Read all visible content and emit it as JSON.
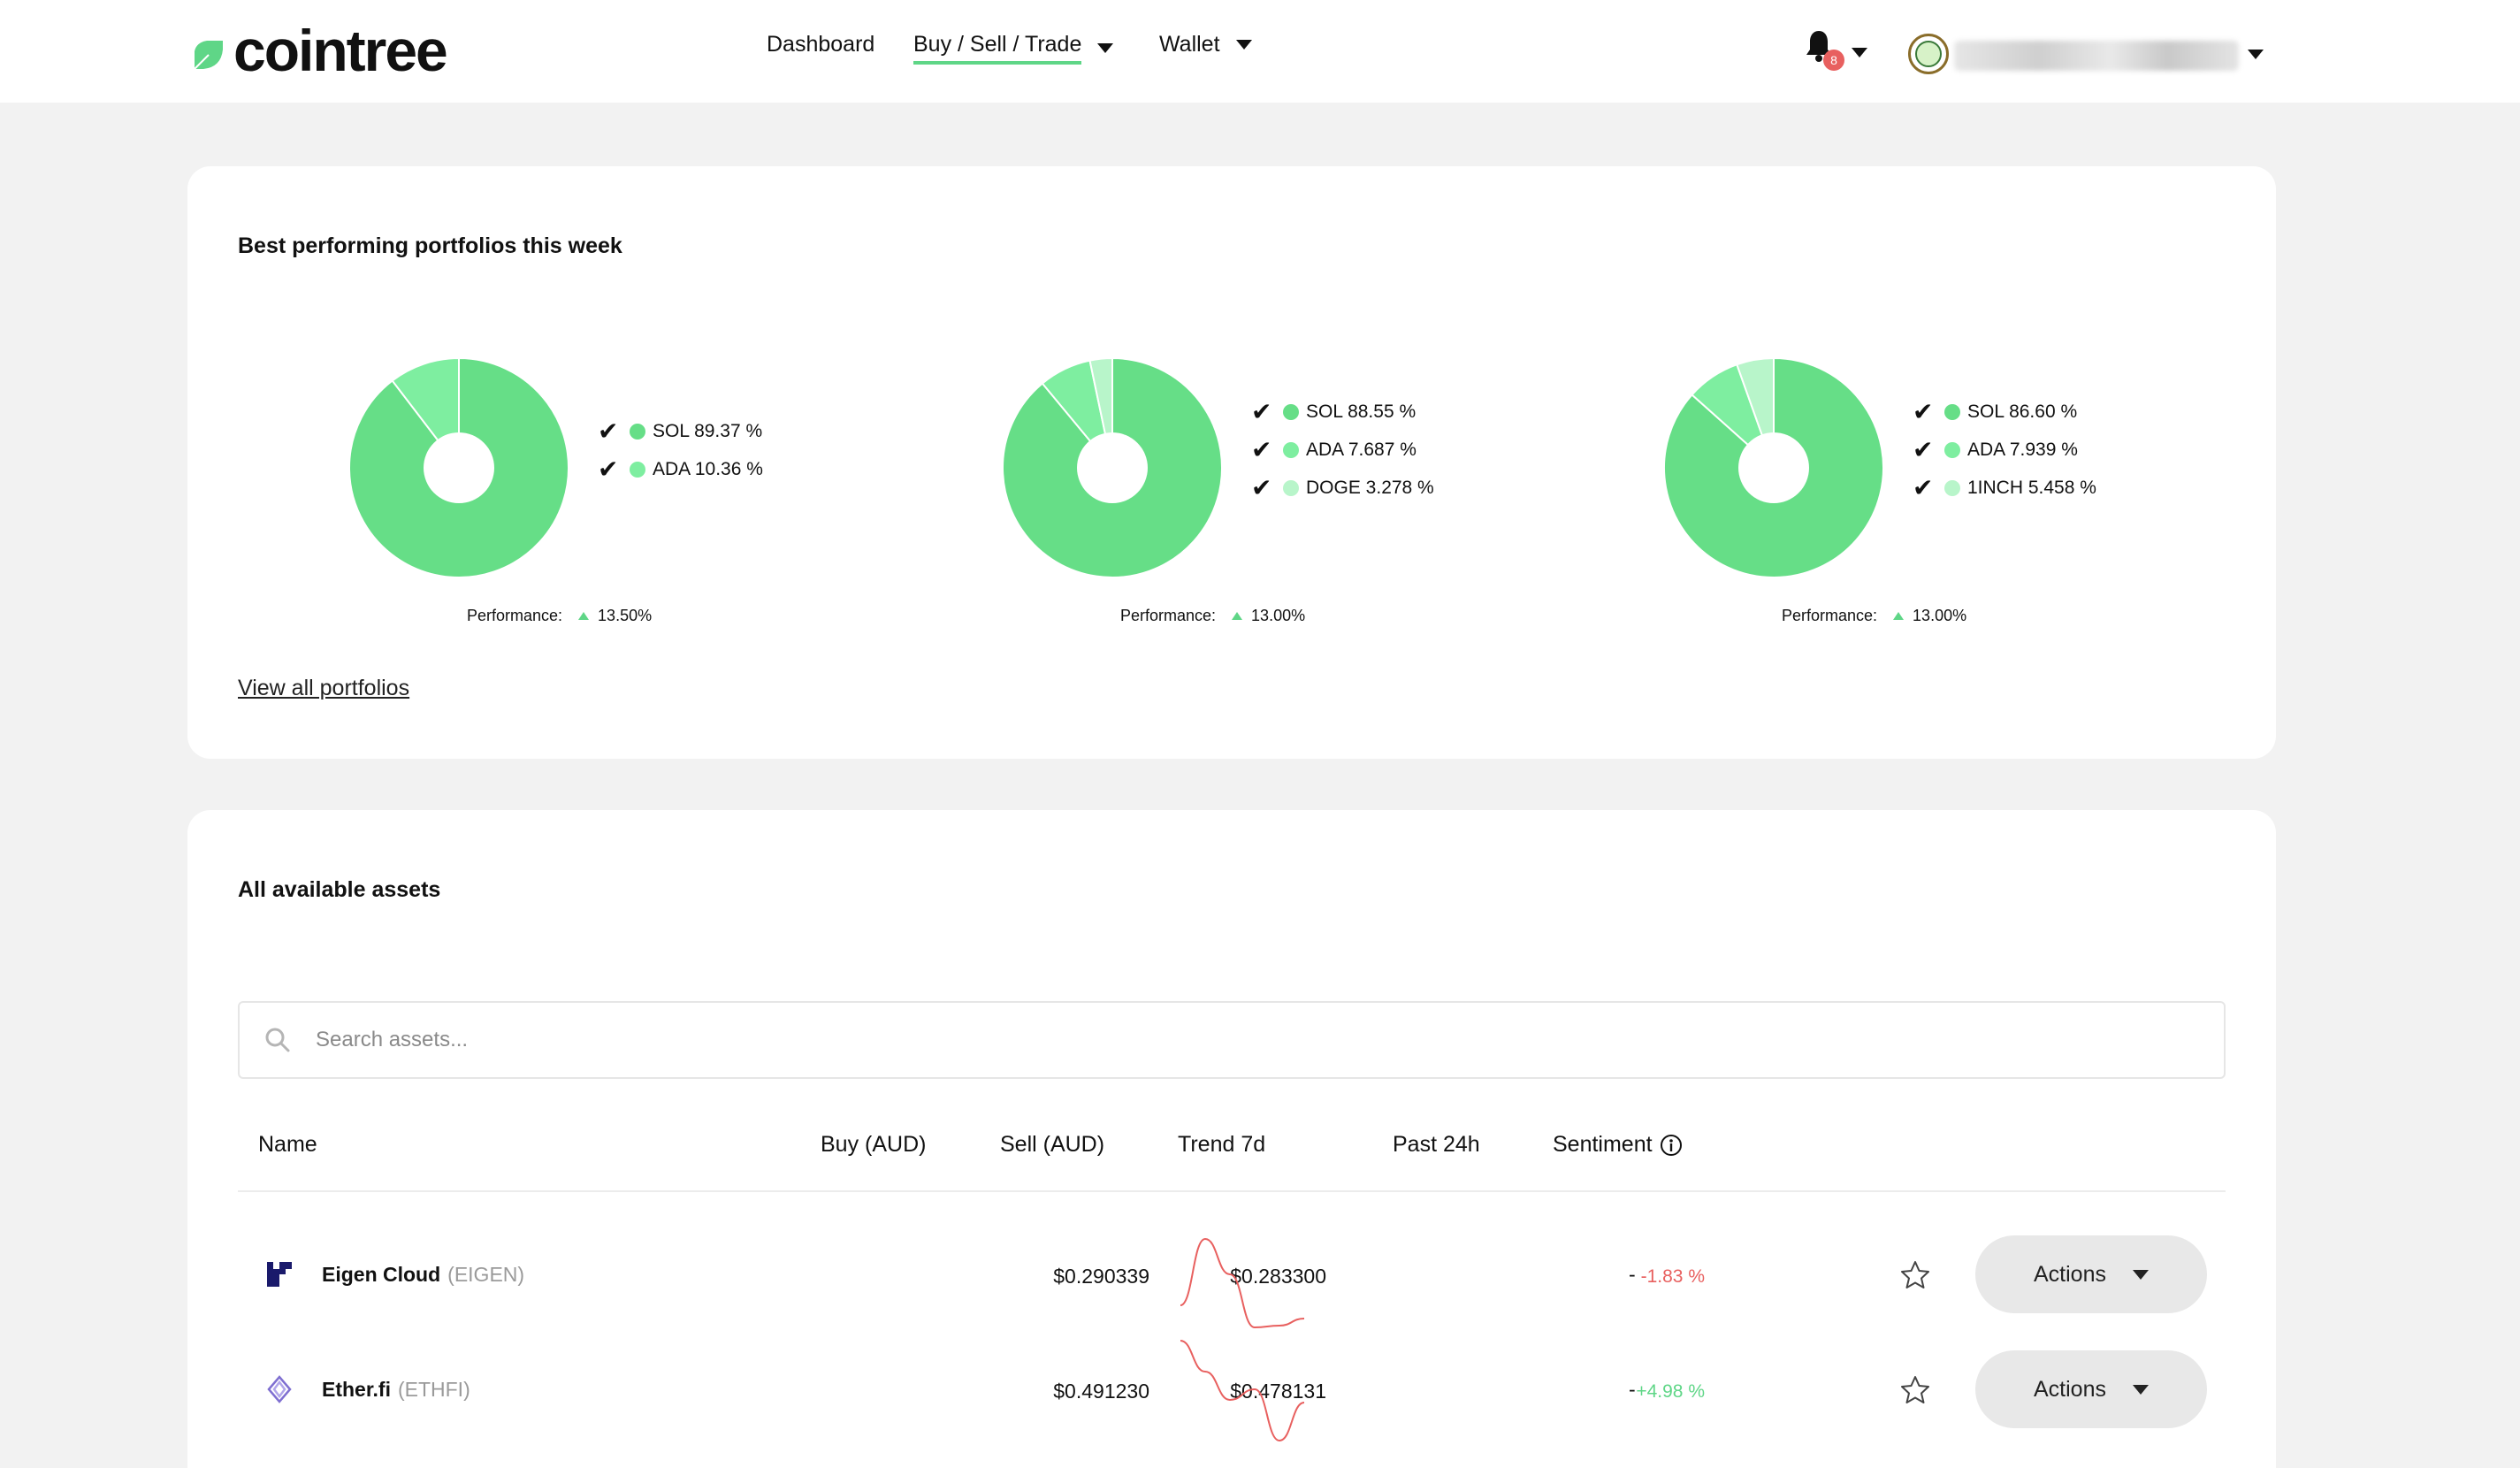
{
  "header": {
    "logo_text": "cointree",
    "nav": [
      {
        "label": "Dashboard",
        "active": false,
        "has_caret": false
      },
      {
        "label": "Buy / Sell / Trade",
        "active": true,
        "has_caret": true
      },
      {
        "label": "Wallet",
        "active": false,
        "has_caret": true
      }
    ],
    "notification_count": "8"
  },
  "colors": {
    "brand_green": "#5fd687",
    "slice_1": "#66de87",
    "slice_2": "#7eeea0",
    "slice_3": "#b8f5ca",
    "negative": "#e8605f",
    "positive": "#5fd687"
  },
  "portfolios_card": {
    "title": "Best performing portfolios this week",
    "performance_label": "Performance:",
    "view_all": "View all portfolios",
    "portfolios": [
      {
        "performance": "13.50%",
        "holdings": [
          {
            "label": "SOL 89.37 %",
            "share": 89.37
          },
          {
            "label": "ADA 10.36 %",
            "share": 10.36
          }
        ]
      },
      {
        "performance": "13.00%",
        "holdings": [
          {
            "label": "SOL 88.55 %",
            "share": 88.55
          },
          {
            "label": "ADA 7.687 %",
            "share": 7.687
          },
          {
            "label": "DOGE 3.278 %",
            "share": 3.278
          }
        ]
      },
      {
        "performance": "13.00%",
        "holdings": [
          {
            "label": "SOL 86.60 %",
            "share": 86.6
          },
          {
            "label": "ADA 7.939 %",
            "share": 7.939
          },
          {
            "label": "1INCH 5.458 %",
            "share": 5.458
          }
        ]
      }
    ]
  },
  "assets_card": {
    "title": "All available assets",
    "search_placeholder": "Search assets...",
    "columns": {
      "name": "Name",
      "buy": "Buy (AUD)",
      "sell": "Sell (AUD)",
      "trend": "Trend 7d",
      "past_24h": "Past 24h",
      "sentiment": "Sentiment"
    },
    "actions_label": "Actions",
    "rows": [
      {
        "name": "Eigen Cloud",
        "symbol": "(EIGEN)",
        "icon": "eigen-icon",
        "buy": "$0.290339",
        "sell": "$0.283300",
        "trend": [
          95,
          20,
          60,
          120,
          118,
          110
        ],
        "change": "-1.83 %",
        "direction": "negative",
        "sentiment": "-"
      },
      {
        "name": "Ether.fi",
        "symbol": "(ETHFI)",
        "icon": "etherfi-icon",
        "buy": "$0.491230",
        "sell": "$0.478131",
        "trend": [
          5,
          40,
          72,
          60,
          118,
          75
        ],
        "change": "+4.98 %",
        "direction": "positive",
        "sentiment": "-"
      }
    ]
  }
}
